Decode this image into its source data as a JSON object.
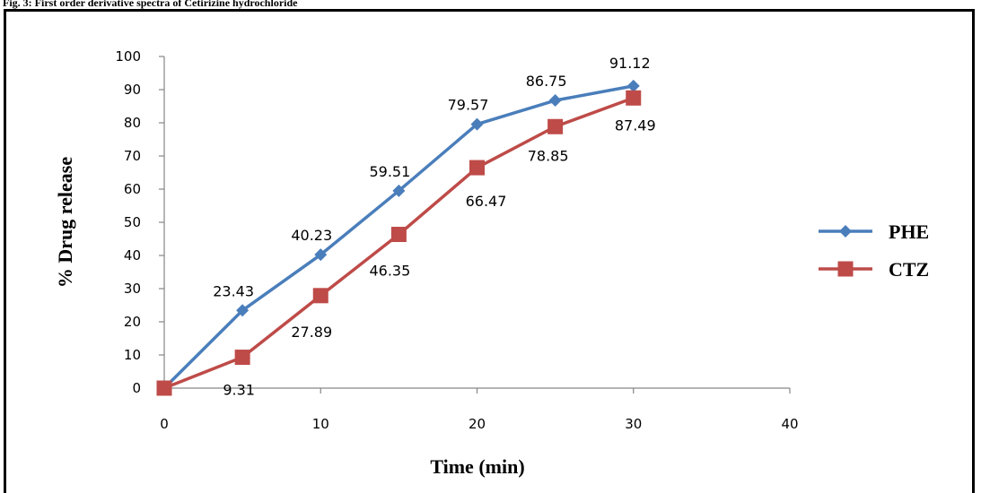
{
  "caption": "Fig. 3: First order derivative spectra of Cetirizine hydrochloride",
  "chart_data": {
    "type": "line",
    "xlabel": "Time (min)",
    "ylabel": "% Drug release",
    "xlim": [
      0,
      40
    ],
    "ylim": [
      0,
      100
    ],
    "xticks": [
      0,
      10,
      20,
      30,
      40
    ],
    "yticks": [
      0,
      10,
      20,
      30,
      40,
      50,
      60,
      70,
      80,
      90,
      100
    ],
    "grid": false,
    "legend_position": "right",
    "series": [
      {
        "name": "PHE",
        "color": "#4A7EBB",
        "marker": "diamond",
        "x": [
          0,
          5,
          10,
          15,
          20,
          25,
          30
        ],
        "y": [
          0,
          23.43,
          40.23,
          59.51,
          79.57,
          86.75,
          91.12
        ],
        "labels": [
          "",
          "23.43",
          "40.23",
          "59.51",
          "79.57",
          "86.75",
          "91.12"
        ]
      },
      {
        "name": "CTZ",
        "color": "#BE4B48",
        "marker": "square",
        "x": [
          0,
          5,
          10,
          15,
          20,
          25,
          30
        ],
        "y": [
          0,
          9.31,
          27.89,
          46.35,
          66.47,
          78.85,
          87.49
        ],
        "labels": [
          "",
          "9.31",
          "27.89",
          "46.35",
          "66.47",
          "78.85",
          "87.49"
        ]
      }
    ]
  }
}
